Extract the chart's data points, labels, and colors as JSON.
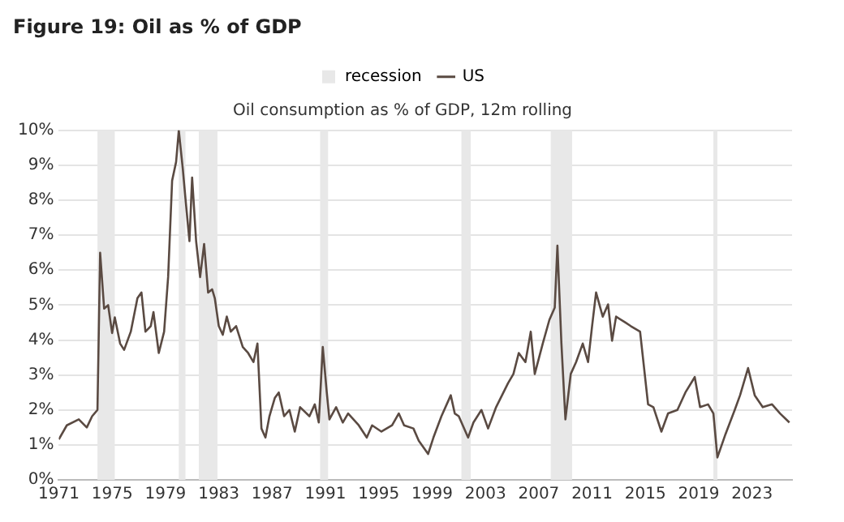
{
  "chart_data": {
    "type": "line",
    "title": "Figure 19: Oil as % of GDP",
    "subtitle": "Oil consumption as % of GDP, 12m rolling",
    "x": [
      1971.0,
      1971.6,
      1972.5,
      1973.1,
      1973.5,
      1973.9,
      1974.1,
      1974.4,
      1974.7,
      1975.0,
      1975.2,
      1975.6,
      1975.9,
      1976.4,
      1976.9,
      1977.2,
      1977.5,
      1977.9,
      1978.1,
      1978.5,
      1978.9,
      1979.2,
      1979.5,
      1979.8,
      1980.0,
      1980.3,
      1980.5,
      1980.8,
      1981.0,
      1981.3,
      1981.6,
      1981.9,
      1982.2,
      1982.5,
      1982.7,
      1983.0,
      1983.3,
      1983.6,
      1983.9,
      1984.3,
      1984.8,
      1985.2,
      1985.6,
      1985.9,
      1986.2,
      1986.5,
      1986.8,
      1987.2,
      1987.5,
      1987.9,
      1988.3,
      1988.7,
      1989.1,
      1989.8,
      1990.2,
      1990.5,
      1990.8,
      1991.1,
      1991.3,
      1991.8,
      1992.3,
      1992.7,
      1993.5,
      1994.1,
      1994.5,
      1995.2,
      1996.0,
      1996.5,
      1996.9,
      1997.6,
      1998.0,
      1998.7,
      1999.1,
      1999.7,
      2000.4,
      2000.7,
      2001.0,
      2001.7,
      2002.1,
      2002.7,
      2003.2,
      2003.8,
      2004.7,
      2005.1,
      2005.5,
      2006.0,
      2006.4,
      2006.7,
      2007.3,
      2007.8,
      2008.2,
      2008.4,
      2008.7,
      2009.0,
      2009.4,
      2009.8,
      2010.3,
      2010.7,
      2011.0,
      2011.3,
      2011.8,
      2012.2,
      2012.5,
      2012.8,
      2013.5,
      2013.9,
      2014.6,
      2015.2,
      2015.6,
      2016.2,
      2016.7,
      2017.4,
      2018.0,
      2018.7,
      2019.1,
      2019.7,
      2020.1,
      2020.4,
      2021.0,
      2021.7,
      2022.1,
      2022.7,
      2023.2,
      2023.8,
      2024.5,
      2025.1,
      2025.8
    ],
    "series": [
      {
        "name": "US",
        "color": "#5a4a42",
        "values": [
          1.16,
          1.56,
          1.73,
          1.5,
          1.82,
          2.0,
          6.5,
          4.9,
          5.0,
          4.2,
          4.65,
          3.9,
          3.72,
          4.24,
          5.2,
          5.36,
          4.24,
          4.4,
          4.8,
          3.63,
          4.24,
          5.8,
          8.56,
          9.1,
          10.0,
          8.9,
          8.05,
          6.83,
          8.65,
          6.83,
          5.8,
          6.75,
          5.36,
          5.45,
          5.2,
          4.4,
          4.15,
          4.67,
          4.24,
          4.4,
          3.8,
          3.63,
          3.37,
          3.9,
          1.47,
          1.21,
          1.82,
          2.34,
          2.5,
          1.82,
          2.0,
          1.38,
          2.08,
          1.82,
          2.16,
          1.64,
          3.8,
          2.5,
          1.73,
          2.08,
          1.64,
          1.9,
          1.56,
          1.21,
          1.56,
          1.38,
          1.56,
          1.9,
          1.56,
          1.47,
          1.12,
          0.74,
          1.21,
          1.82,
          2.42,
          1.9,
          1.82,
          1.21,
          1.64,
          2.0,
          1.47,
          2.08,
          2.77,
          3.03,
          3.63,
          3.37,
          4.24,
          3.03,
          3.9,
          4.58,
          4.93,
          6.7,
          3.9,
          1.73,
          3.03,
          3.37,
          3.9,
          3.37,
          4.4,
          5.36,
          4.67,
          5.02,
          3.98,
          4.67,
          4.5,
          4.4,
          4.24,
          2.16,
          2.08,
          1.38,
          1.9,
          2.0,
          2.5,
          2.94,
          2.08,
          2.16,
          1.9,
          0.64,
          1.3,
          2.0,
          2.42,
          3.2,
          2.42,
          2.08,
          2.16,
          1.9,
          1.64
        ]
      }
    ],
    "bands": [
      {
        "axis": "x",
        "from": 1973.9,
        "to": 1975.2,
        "label": "recession",
        "color": "#e8e8e8"
      },
      {
        "axis": "x",
        "from": 1980.0,
        "to": 1980.5,
        "color": "#e8e8e8"
      },
      {
        "axis": "x",
        "from": 1981.5,
        "to": 1982.9,
        "color": "#e8e8e8"
      },
      {
        "axis": "x",
        "from": 1990.6,
        "to": 1991.2,
        "color": "#e8e8e8"
      },
      {
        "axis": "x",
        "from": 2001.2,
        "to": 2001.9,
        "color": "#e8e8e8"
      },
      {
        "axis": "x",
        "from": 2007.9,
        "to": 2009.5,
        "color": "#e8e8e8"
      },
      {
        "axis": "x",
        "from": 2020.1,
        "to": 2020.4,
        "color": "#e8e8e8"
      }
    ],
    "xlim": [
      1971,
      2026
    ],
    "xticks": [
      1971,
      1975,
      1979,
      1983,
      1987,
      1991,
      1995,
      1999,
      2003,
      2007,
      2011,
      2015,
      2019,
      2023
    ],
    "ylim": [
      0,
      10
    ],
    "yticks": [
      {
        "value": 0,
        "label": "0%"
      },
      {
        "value": 1,
        "label": "1%"
      },
      {
        "value": 2,
        "label": "2%"
      },
      {
        "value": 3,
        "label": "3%"
      },
      {
        "value": 4,
        "label": "4%"
      },
      {
        "value": 5,
        "label": "5%"
      },
      {
        "value": 6,
        "label": "6%"
      },
      {
        "value": 7,
        "label": "7%"
      },
      {
        "value": 8,
        "label": "8%"
      },
      {
        "value": 9,
        "label": "9%"
      },
      {
        "value": 10,
        "label": "10%"
      }
    ],
    "grid": "y",
    "legend": "top",
    "marker": "none",
    "line_style": "solid"
  }
}
